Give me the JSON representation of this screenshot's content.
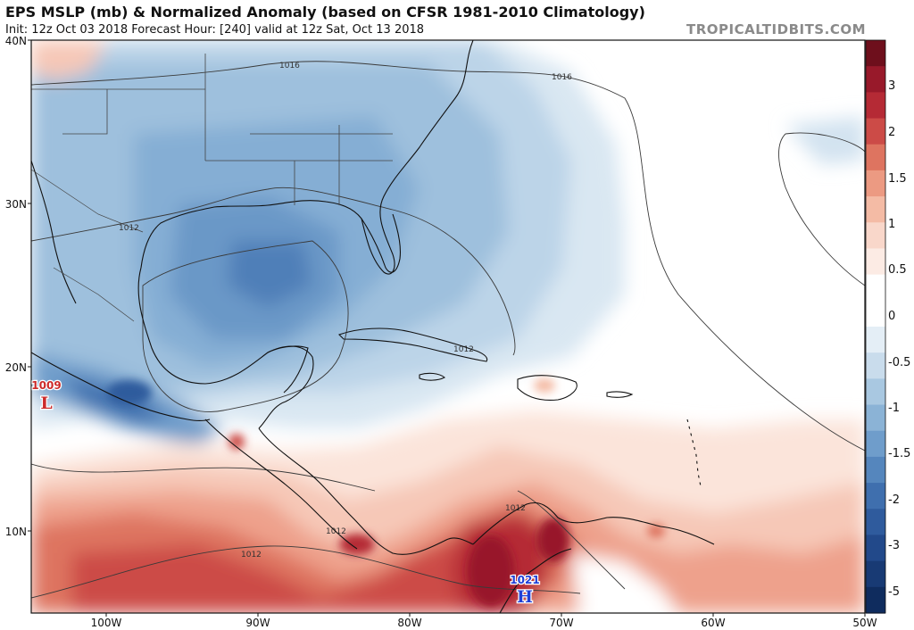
{
  "header": {
    "title": "EPS MSLP (mb) & Normalized Anomaly (based on CFSR 1981-2010 Climatology)",
    "subtitle": "Init: 12z Oct 03 2018   Forecast Hour: [240]   valid at 12z Sat, Oct 13 2018",
    "brand": "TROPICALTIDBITS.COM"
  },
  "map": {
    "lat_labels": [
      "40N",
      "30N",
      "20N",
      "10N"
    ],
    "lon_labels": [
      "100W",
      "90W",
      "80W",
      "70W",
      "60W",
      "50W"
    ],
    "isobar_labels": [
      "1016",
      "1016",
      "1012",
      "1012",
      "1012",
      "1012",
      "1012"
    ],
    "pressure_centers": [
      {
        "type": "L",
        "value": "1009",
        "color": "#cc2a2a"
      },
      {
        "type": "H",
        "value": "1021",
        "color": "#1f3fd6"
      }
    ]
  },
  "colorbar": {
    "labels": [
      "3",
      "2",
      "1.5",
      "1",
      "0.5",
      "0",
      "-0.5",
      "-1",
      "-1.5",
      "-2",
      "-3",
      "-5"
    ],
    "colors": [
      "#6e0f1c",
      "#98192a",
      "#b52a35",
      "#cc4b47",
      "#de7460",
      "#ec9a82",
      "#f4bba5",
      "#f9d7ca",
      "#fcebe4",
      "#ffffff",
      "#ffffff",
      "#e4eef6",
      "#c9dcec",
      "#a9c8e1",
      "#8bb3d6",
      "#6f9dcb",
      "#5586bd",
      "#3f6fae",
      "#2f5b9d",
      "#22498a",
      "#183a74",
      "#0f2c5e"
    ]
  }
}
